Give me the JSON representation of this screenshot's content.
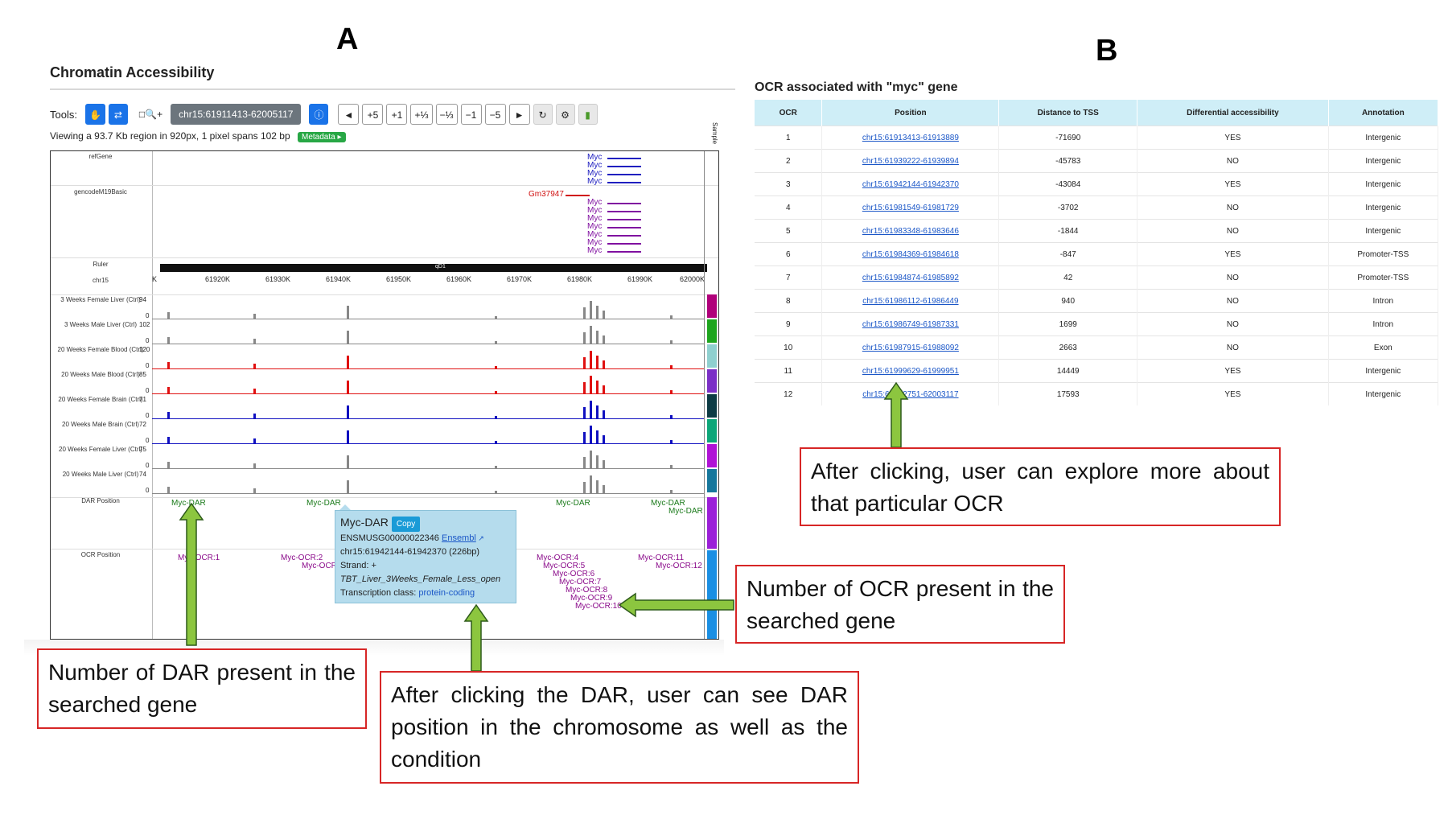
{
  "panel_a": {
    "letter": "A",
    "title": "Chromatin Accessibility",
    "toolbar": {
      "tools_label": "Tools:",
      "locus": "chr15:61911413-62005117",
      "buttons": [
        "◄",
        "+5",
        "+1",
        "+⅓",
        "−⅓",
        "−1",
        "−5",
        "►"
      ]
    },
    "viewing": "Viewing a 93.7 Kb region in 920px, 1 pixel spans 102 bp",
    "metadata_label": "Metadata ▸",
    "sample_label": "Sample",
    "tracks": {
      "refgene": "refGene",
      "gencode": "gencodeM19Basic",
      "ruler": "Ruler",
      "chrom": "chr15",
      "band": "qD1",
      "dar": "DAR Position",
      "ocr": "OCR Position"
    },
    "ruler_ticks": [
      "K",
      "61920K",
      "61930K",
      "61940K",
      "61950K",
      "61960K",
      "61970K",
      "61980K",
      "61990K",
      "62000K"
    ],
    "genes": {
      "myc": "Myc",
      "gm": "Gm37947"
    },
    "signal_tracks": [
      {
        "label": "3 Weeks Female Liver (Ctrl)",
        "max": "94",
        "zero": "0",
        "color": "#888888",
        "strip": "#b0007a"
      },
      {
        "label": "3 Weeks Male Liver (Ctrl)",
        "max": "102",
        "zero": "0",
        "color": "#888888",
        "strip": "#1ea51e"
      },
      {
        "label": "20 Weeks Female Blood (Ctrl)",
        "max": "120",
        "zero": "0",
        "color": "#e01010",
        "strip": "#8fd0cf"
      },
      {
        "label": "20 Weeks Male Blood (Ctrl)",
        "max": "85",
        "zero": "0",
        "color": "#e01010",
        "strip": "#7b2fc6"
      },
      {
        "label": "20 Weeks Female Brain (Ctrl)",
        "max": "71",
        "zero": "0",
        "color": "#1010c0",
        "strip": "#0d3b44"
      },
      {
        "label": "20 Weeks Male Brain (Ctrl)",
        "max": "72",
        "zero": "0",
        "color": "#1010c0",
        "strip": "#0ca678"
      },
      {
        "label": "20 Weeks Female Liver (Ctrl)",
        "max": "75",
        "zero": "0",
        "color": "#888888",
        "strip": "#b012d6"
      },
      {
        "label": "20 Weeks Male Liver (Ctrl)",
        "max": "74",
        "zero": "0",
        "color": "#888888",
        "strip": "#16779c"
      }
    ],
    "dar_labels": [
      "Myc-DAR",
      "Myc-DAR",
      "Myc-DAR",
      "Myc-DAR",
      "Myc-DAR"
    ],
    "ocr_labels": [
      "Myc-OCR:1",
      "Myc-OCR:2",
      "Myc-OCR",
      "Myc-OCR:4",
      "Myc-OCR:5",
      "Myc-OCR:6",
      "Myc-OCR:7",
      "Myc-OCR:8",
      "Myc-OCR:9",
      "Myc-OCR:10",
      "Myc-OCR:11",
      "Myc-OCR:12"
    ],
    "tooltip": {
      "title": "Myc-DAR",
      "copy": "Copy",
      "ensembl_id": "ENSMUSG00000022346",
      "ensembl_link": "Ensembl",
      "position": "chr15:61942144-61942370 (226bp)",
      "strand": "Strand: +",
      "condition": "TBT_Liver_3Weeks_Female_Less_open",
      "class_label": "Transcription class:",
      "class_value": "protein-coding"
    }
  },
  "panel_b": {
    "letter": "B",
    "title": "OCR associated with \"myc\" gene",
    "columns": [
      "OCR",
      "Position",
      "Distance to TSS",
      "Differential accessibility",
      "Annotation"
    ],
    "rows": [
      [
        "1",
        "chr15:61913413-61913889",
        "-71690",
        "YES",
        "Intergenic"
      ],
      [
        "2",
        "chr15:61939222-61939894",
        "-45783",
        "NO",
        "Intergenic"
      ],
      [
        "3",
        "chr15:61942144-61942370",
        "-43084",
        "YES",
        "Intergenic"
      ],
      [
        "4",
        "chr15:61981549-61981729",
        "-3702",
        "NO",
        "Intergenic"
      ],
      [
        "5",
        "chr15:61983348-61983646",
        "-1844",
        "NO",
        "Intergenic"
      ],
      [
        "6",
        "chr15:61984369-61984618",
        "-847",
        "YES",
        "Promoter-TSS"
      ],
      [
        "7",
        "chr15:61984874-61985892",
        "42",
        "NO",
        "Promoter-TSS"
      ],
      [
        "8",
        "chr15:61986112-61986449",
        "940",
        "NO",
        "Intron"
      ],
      [
        "9",
        "chr15:61986749-61987331",
        "1699",
        "NO",
        "Intron"
      ],
      [
        "10",
        "chr15:61987915-61988092",
        "2663",
        "NO",
        "Exon"
      ],
      [
        "11",
        "chr15:61999629-61999951",
        "14449",
        "YES",
        "Intergenic"
      ],
      [
        "12",
        "chr15:62002751-62003117",
        "17593",
        "YES",
        "Intergenic"
      ]
    ]
  },
  "annotations": {
    "dar": "Number of DAR present in the searched gene",
    "dar_click": "After clicking the DAR, user can see DAR position in the chromosome as well as the condition",
    "ocr": "Number of OCR present in the searched gene",
    "ocr_click": "After clicking, user can explore more about that particular OCR"
  },
  "colors": {
    "arrow_fill": "#8cc63f",
    "arrow_stroke": "#2d5a1a",
    "box_border": "#d72626",
    "header_bg": "#cfeef7"
  }
}
